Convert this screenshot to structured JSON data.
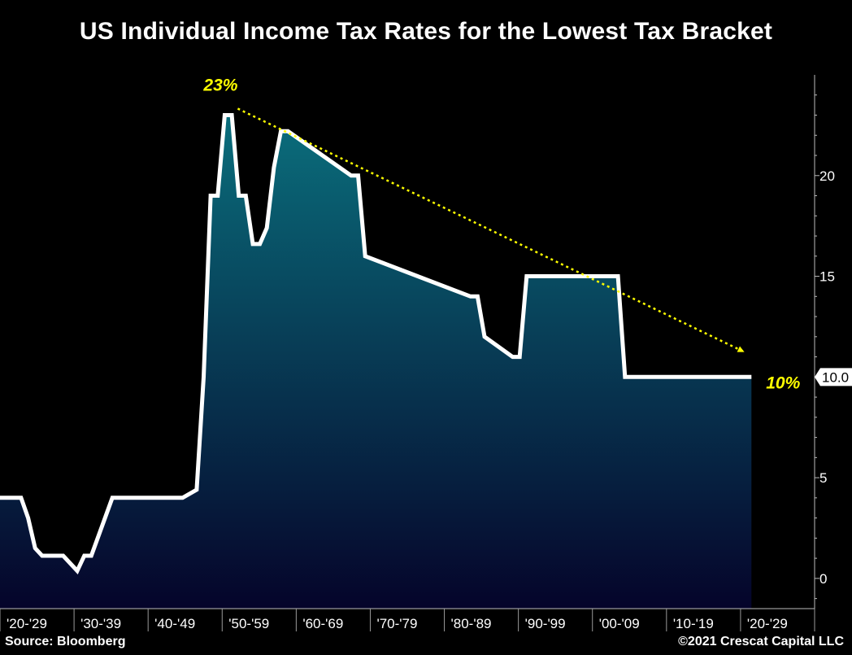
{
  "chart_data": {
    "type": "area",
    "title": "US Individual Income Tax Rates for the Lowest Tax Bracket",
    "source": "Source: Bloomberg",
    "copyright": "©2021 Crescat Capital LLC",
    "x_tick_labels": [
      "'20-'29",
      "'30-'39",
      "'40-'49",
      "'50-'59",
      "'60-'69",
      "'70-'79",
      "'80-'89",
      "'90-'99",
      "'00-'09",
      "'10-'19",
      "'20-'29"
    ],
    "y_ticks": [
      0,
      5,
      10,
      15,
      20
    ],
    "ylim": [
      -1.5,
      25
    ],
    "xlim": [
      1913,
      2029
    ],
    "last_value_label": "10.0",
    "series": [
      {
        "x": [
          1913,
          1916,
          1917,
          1918,
          1919,
          1922,
          1924,
          1925,
          1926,
          1929,
          1930,
          1932,
          1934,
          1935,
          1936,
          1938,
          1939,
          1941,
          1942,
          1943,
          1944,
          1945,
          1946,
          1947,
          1948,
          1949,
          1950,
          1951,
          1952,
          1953,
          1954,
          1963,
          1964,
          1965,
          1980,
          1981,
          1982,
          1986,
          1987,
          1988,
          1992,
          1993,
          1995,
          1996,
          2000,
          2001,
          2002,
          2010,
          2018,
          2020
        ],
        "values": [
          4,
          4,
          3,
          1.5,
          1.125,
          1.125,
          0.375,
          1.125,
          1.125,
          4,
          4,
          4,
          4,
          4,
          4,
          4,
          4,
          4.4,
          10,
          19,
          19,
          23,
          23,
          19,
          19,
          16.6,
          16.6,
          17.4,
          20.4,
          22.2,
          22.2,
          20,
          20,
          16,
          14,
          14,
          12,
          11,
          11,
          15,
          15,
          15,
          15,
          15,
          15,
          15,
          10,
          10,
          10,
          10
        ]
      }
    ],
    "annotations": [
      {
        "text": "23%",
        "x": 1945,
        "y": 23
      },
      {
        "text": "10%",
        "x": 2020,
        "y": 10
      }
    ],
    "trend_line": {
      "from": [
        1945,
        23
      ],
      "to": [
        2019,
        11
      ]
    },
    "colors": {
      "background": "#000000",
      "line": "#ffffff",
      "area_top": "#0a6e7c",
      "area_bottom": "#05042a",
      "annotation": "#ffff00",
      "trend": "#ffff00"
    },
    "grid": false
  }
}
